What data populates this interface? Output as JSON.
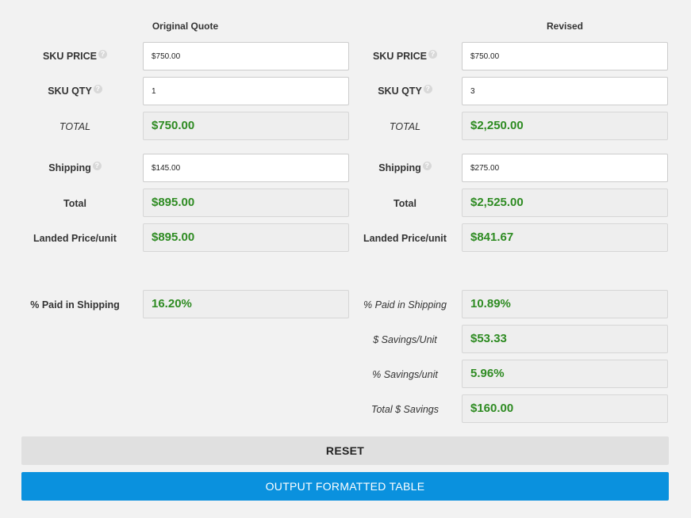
{
  "columns": {
    "original": "Original Quote",
    "revised": "Revised"
  },
  "help_glyph": "?",
  "original": {
    "sku_price_label": "SKU PRICE",
    "sku_price_value": "$750.00",
    "sku_qty_label": "SKU QTY",
    "sku_qty_value": "1",
    "total_label": "TOTAL",
    "total_value": "$750.00",
    "shipping_label": "Shipping",
    "shipping_value": "$145.00",
    "grand_total_label": "Total",
    "grand_total_value": "$895.00",
    "landed_label": "Landed Price/unit",
    "landed_value": "$895.00",
    "pct_shipping_label": "% Paid in Shipping",
    "pct_shipping_value": "16.20%"
  },
  "revised": {
    "sku_price_label": "SKU PRICE",
    "sku_price_value": "$750.00",
    "sku_qty_label": "SKU QTY",
    "sku_qty_value": "3",
    "total_label": "TOTAL",
    "total_value": "$2,250.00",
    "shipping_label": "Shipping",
    "shipping_value": "$275.00",
    "grand_total_label": "Total",
    "grand_total_value": "$2,525.00",
    "landed_label": "Landed Price/unit",
    "landed_value": "$841.67",
    "pct_shipping_label": "% Paid in Shipping",
    "pct_shipping_value": "10.89%",
    "savings_unit_label": "$ Savings/Unit",
    "savings_unit_value": "$53.33",
    "pct_savings_label": "% Savings/unit",
    "pct_savings_value": "5.96%",
    "total_savings_label": "Total $ Savings",
    "total_savings_value": "$160.00"
  },
  "buttons": {
    "reset": "RESET",
    "output": "OUTPUT FORMATTED TABLE"
  },
  "colors": {
    "result_text": "#2e8b22",
    "primary_button": "#0a91de",
    "reset_button": "#e0e0e0"
  }
}
